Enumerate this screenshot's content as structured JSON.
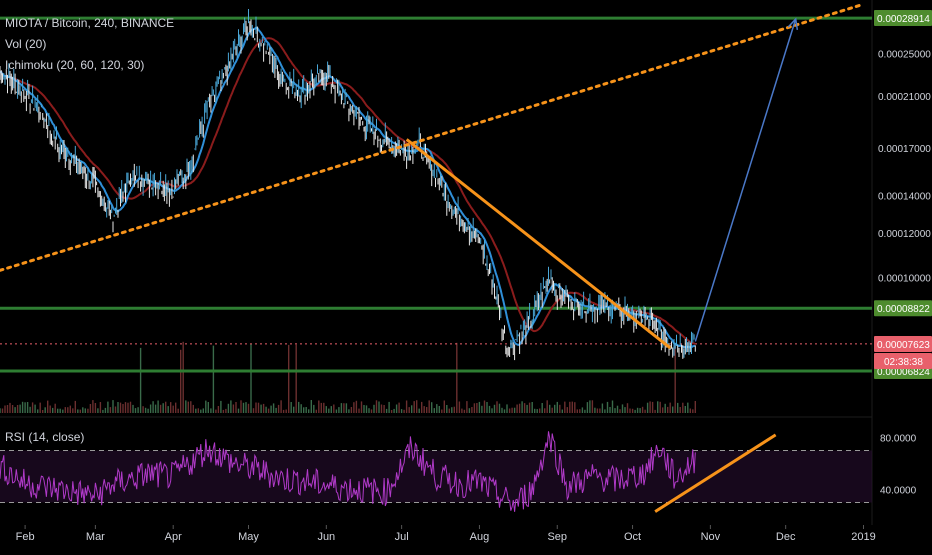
{
  "legend": {
    "symbol": "MIOTA / Bitcoin, 240, BINANCE",
    "vol": "Vol (20)",
    "ichimoku": "Ichimoku (20, 60, 120, 30)",
    "rsi": "RSI (14, close)"
  },
  "colors": {
    "background": "#000000",
    "text": "#d1d4dc",
    "price_up": "#4aa8d8",
    "price_down": "#e8e8e8",
    "conversion_line": "#2f8fd8",
    "base_line": "#8a1c1c",
    "support_line": "#2e7d32",
    "trend_line": "#f7931a",
    "projection_arrow": "#4a78c8",
    "rsi_line": "#b03ac8",
    "rsi_band": "#2a0f33",
    "current_price_tag": "#e8606b",
    "level_tag": "#4e8c2e"
  },
  "chart_data": [
    {
      "type": "line",
      "title": "MIOTA / Bitcoin, 240, BINANCE",
      "x_tick_labels": [
        "Feb",
        "Mar",
        "Apr",
        "May",
        "Jun",
        "Jul",
        "Aug",
        "Sep",
        "Oct",
        "Nov",
        "Dec",
        "2019"
      ],
      "y_tick_labels": [
        "0.00025000",
        "0.00021000",
        "0.00017000",
        "0.00014000",
        "0.00012000",
        "0.00010000"
      ],
      "y_scale": "log",
      "ylim": [
        5.7e-05,
        0.000305
      ],
      "series": [
        {
          "name": "MIOTA / Bitcoin",
          "x": [
            "2018-01-22",
            "2018-02-01",
            "2018-02-08",
            "2018-02-15",
            "2018-02-22",
            "2018-03-01",
            "2018-03-08",
            "2018-03-15",
            "2018-03-22",
            "2018-04-01",
            "2018-04-08",
            "2018-04-15",
            "2018-04-22",
            "2018-05-01",
            "2018-05-08",
            "2018-05-15",
            "2018-05-22",
            "2018-06-01",
            "2018-06-08",
            "2018-06-15",
            "2018-06-22",
            "2018-07-01",
            "2018-07-08",
            "2018-07-15",
            "2018-07-22",
            "2018-08-01",
            "2018-08-08",
            "2018-08-12",
            "2018-08-15",
            "2018-08-22",
            "2018-08-29",
            "2018-09-01",
            "2018-09-08",
            "2018-09-15",
            "2018-09-22",
            "2018-10-01",
            "2018-10-08",
            "2018-10-15",
            "2018-10-22",
            "2018-10-26"
          ],
          "values": [
            0.000232,
            0.000213,
            0.000195,
            0.000168,
            0.00016,
            0.000145,
            0.000128,
            0.000151,
            0.000149,
            0.000143,
            0.00016,
            0.000202,
            0.000232,
            0.000286,
            0.000254,
            0.000225,
            0.000215,
            0.00023,
            0.000206,
            0.00019,
            0.000178,
            0.000168,
            0.000172,
            0.00015,
            0.000132,
            0.000117,
            9.2e-05,
            7.5e-05,
            7.7e-05,
            8.5e-05,
            0.000101,
            9.4e-05,
            9e-05,
            8.9e-05,
            8.8e-05,
            8.6e-05,
            8.4e-05,
            7.7e-05,
            7.6e-05,
            7.6e-05
          ]
        }
      ],
      "horizontal_levels": [
        0.00028914,
        8.822e-05,
        6.824e-05
      ],
      "current_price": 7.623e-05,
      "price_labels": [
        "0.00028914",
        "0.00008822",
        "0.00007623",
        "0.00006824"
      ],
      "countdown_label": "02:38:38",
      "trend_lines": [
        {
          "style": "dotted",
          "from": [
            "2018-01-22",
            0.000103
          ],
          "to": [
            "2018-12-31",
            0.000305
          ]
        },
        {
          "style": "solid",
          "from": [
            "2018-07-03",
            0.000176
          ],
          "to": [
            "2018-10-16",
            7.5e-05
          ]
        },
        {
          "style": "arrow",
          "from": [
            "2018-10-26",
            7.7e-05
          ],
          "to": [
            "2018-12-05",
            0.000288
          ]
        }
      ]
    },
    {
      "type": "line",
      "title": "RSI (14, close)",
      "y_tick_labels": [
        "80.0000",
        "40.0000"
      ],
      "ylim": [
        15,
        95
      ],
      "band": [
        70,
        30
      ],
      "series": [
        {
          "name": "RSI (14, close)",
          "x": [
            "2018-01-22",
            "2018-02-01",
            "2018-02-15",
            "2018-03-01",
            "2018-03-08",
            "2018-03-22",
            "2018-04-01",
            "2018-04-15",
            "2018-04-25",
            "2018-05-05",
            "2018-05-15",
            "2018-05-25",
            "2018-06-05",
            "2018-06-15",
            "2018-06-25",
            "2018-07-05",
            "2018-07-15",
            "2018-07-25",
            "2018-08-01",
            "2018-08-08",
            "2018-08-15",
            "2018-08-22",
            "2018-08-29",
            "2018-09-05",
            "2018-09-15",
            "2018-09-25",
            "2018-10-05",
            "2018-10-12",
            "2018-10-18",
            "2018-10-26"
          ],
          "values": [
            58,
            45,
            40,
            35,
            44,
            52,
            50,
            72,
            60,
            55,
            48,
            46,
            42,
            40,
            38,
            72,
            50,
            44,
            46,
            36,
            28,
            40,
            82,
            42,
            50,
            47,
            52,
            72,
            48,
            63
          ]
        }
      ],
      "trend_lines": [
        {
          "style": "solid",
          "from": [
            "2018-10-10",
            23
          ],
          "to": [
            "2018-11-27",
            82
          ]
        }
      ]
    }
  ]
}
